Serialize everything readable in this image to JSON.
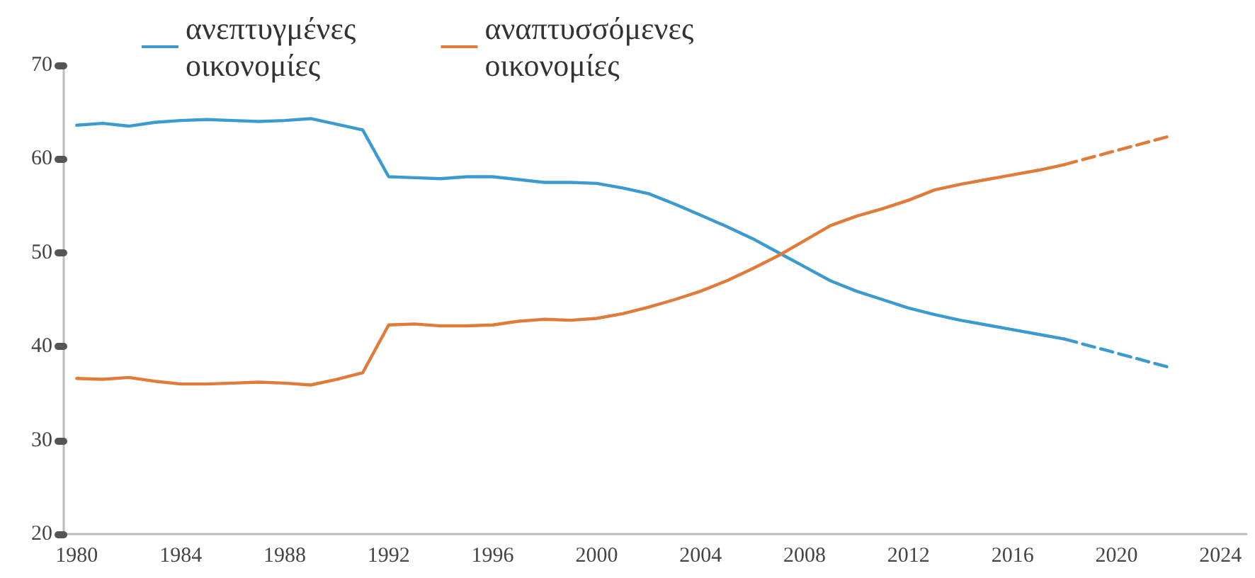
{
  "chart_data": {
    "type": "line",
    "legend": "top",
    "grid": false,
    "marker": "none",
    "xlim": [
      1979.5,
      2025
    ],
    "xticks": [
      1980,
      1984,
      1988,
      1992,
      1996,
      2000,
      2004,
      2008,
      2012,
      2016,
      2020,
      2024
    ],
    "ylim": [
      20,
      70
    ],
    "yticks": [
      20,
      30,
      40,
      50,
      60,
      70
    ],
    "series": [
      {
        "name": "ανεπτυγμένες οικονομίες",
        "color": "#3b9bd0",
        "line_style": "solid",
        "x": [
          1980,
          1981,
          1982,
          1983,
          1984,
          1985,
          1986,
          1987,
          1988,
          1989,
          1990,
          1991,
          1992,
          1993,
          1994,
          1995,
          1996,
          1997,
          1998,
          1999,
          2000,
          2001,
          2002,
          2003,
          2004,
          2005,
          2006,
          2007,
          2008,
          2009,
          2010,
          2011,
          2012,
          2013,
          2014,
          2015,
          2016,
          2017,
          2018
        ],
        "values": [
          63.6,
          63.8,
          63.5,
          63.9,
          64.1,
          64.2,
          64.1,
          64.0,
          64.1,
          64.3,
          63.7,
          63.1,
          58.1,
          58.0,
          57.9,
          58.1,
          58.1,
          57.8,
          57.5,
          57.5,
          57.4,
          56.9,
          56.3,
          55.2,
          54.0,
          52.8,
          51.5,
          50.0,
          48.5,
          47.0,
          45.9,
          45.0,
          44.1,
          43.4,
          42.8,
          42.3,
          41.8,
          41.3,
          40.8
        ]
      },
      {
        "name": "αναπτυσσόμενες οικονομίες",
        "color": "#e07b39",
        "line_style": "solid",
        "x": [
          1980,
          1981,
          1982,
          1983,
          1984,
          1985,
          1986,
          1987,
          1988,
          1989,
          1990,
          1991,
          1992,
          1993,
          1994,
          1995,
          1996,
          1997,
          1998,
          1999,
          2000,
          2001,
          2002,
          2003,
          2004,
          2005,
          2006,
          2007,
          2008,
          2009,
          2010,
          2011,
          2012,
          2013,
          2014,
          2015,
          2016,
          2017,
          2018
        ],
        "values": [
          36.6,
          36.5,
          36.7,
          36.3,
          36.0,
          36.0,
          36.1,
          36.2,
          36.1,
          35.9,
          36.5,
          37.2,
          42.3,
          42.4,
          42.2,
          42.2,
          42.3,
          42.7,
          42.9,
          42.8,
          43.0,
          43.5,
          44.2,
          45.0,
          45.9,
          47.0,
          48.3,
          49.7,
          51.3,
          52.9,
          53.9,
          54.7,
          55.6,
          56.7,
          57.3,
          57.8,
          58.3,
          58.8,
          59.4
        ]
      },
      {
        "color": "#3b9bd0",
        "line_style": "dashed",
        "x": [
          2018,
          2022
        ],
        "values": [
          40.8,
          37.8
        ]
      },
      {
        "color": "#e07b39",
        "line_style": "dashed",
        "x": [
          2018,
          2022
        ],
        "values": [
          59.4,
          62.4
        ]
      }
    ]
  }
}
